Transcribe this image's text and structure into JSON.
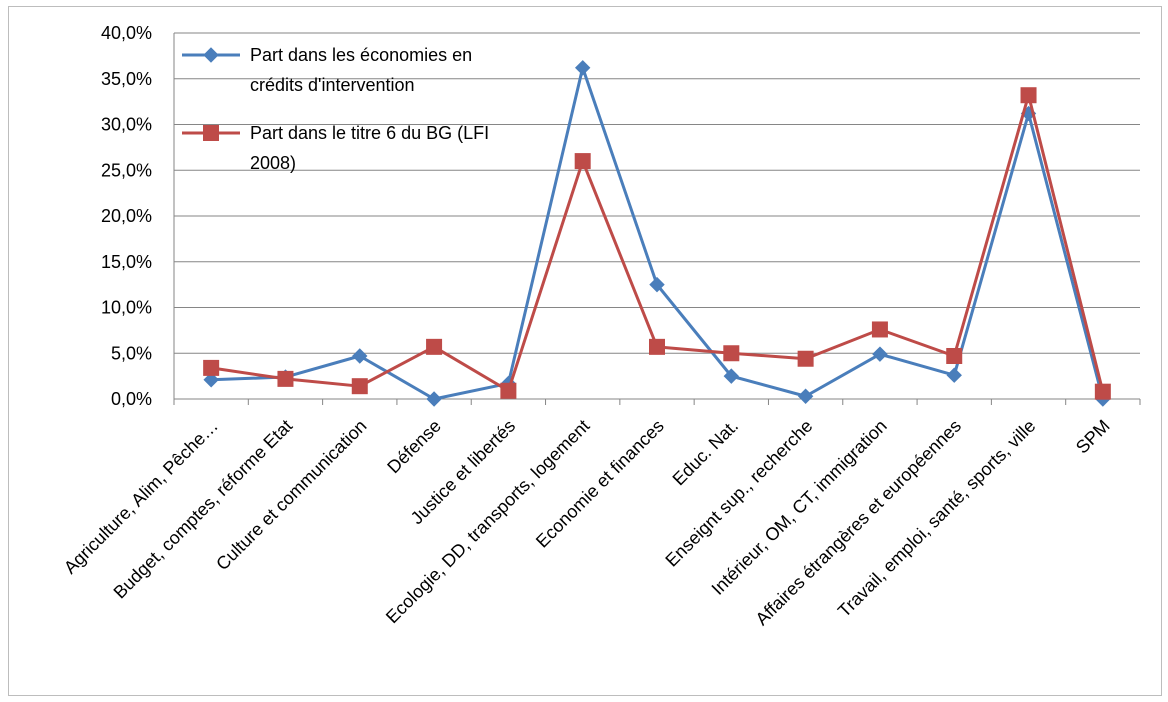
{
  "chart_data": {
    "type": "line",
    "categories": [
      "Agriculture, Alim, Pêche…",
      "Budget, comptes, réforme Etat",
      "Culture et communication",
      "Défense",
      "Justice et libertés",
      "Ecologie, DD, transports, logement",
      "Economie et finances",
      "Educ. Nat.",
      "Enseignt sup., recherche",
      "Intérieur, OM, CT, immigration",
      "Affaires étrangères et européennes",
      "Travail, emploi, santé, sports, ville",
      "SPM"
    ],
    "series": [
      {
        "name": "Part dans les économies en crédits d'intervention",
        "name_lines": [
          "Part dans les économies en",
          "crédits d'intervention"
        ],
        "color": "#4a7ebb",
        "marker": "diamond",
        "values": [
          2.1,
          2.4,
          4.7,
          0.0,
          1.7,
          36.2,
          12.5,
          2.5,
          0.3,
          4.9,
          2.6,
          31.2,
          0.0
        ]
      },
      {
        "name": "Part dans le titre 6 du BG (LFI 2008)",
        "name_lines": [
          "Part dans le titre 6 du BG (LFI",
          "2008)"
        ],
        "color": "#be4b48",
        "marker": "square",
        "values": [
          3.4,
          2.2,
          1.4,
          5.7,
          0.9,
          26.0,
          5.7,
          5.0,
          4.4,
          7.6,
          4.7,
          33.2,
          0.8
        ]
      }
    ],
    "y_ticks": [
      "0,0%",
      "5,0%",
      "10,0%",
      "15,0%",
      "20,0%",
      "25,0%",
      "30,0%",
      "35,0%",
      "40,0%"
    ],
    "ylim": [
      0,
      40
    ],
    "title": "",
    "xlabel": "",
    "ylabel": "",
    "grid": true,
    "legend_position": "top-left"
  }
}
